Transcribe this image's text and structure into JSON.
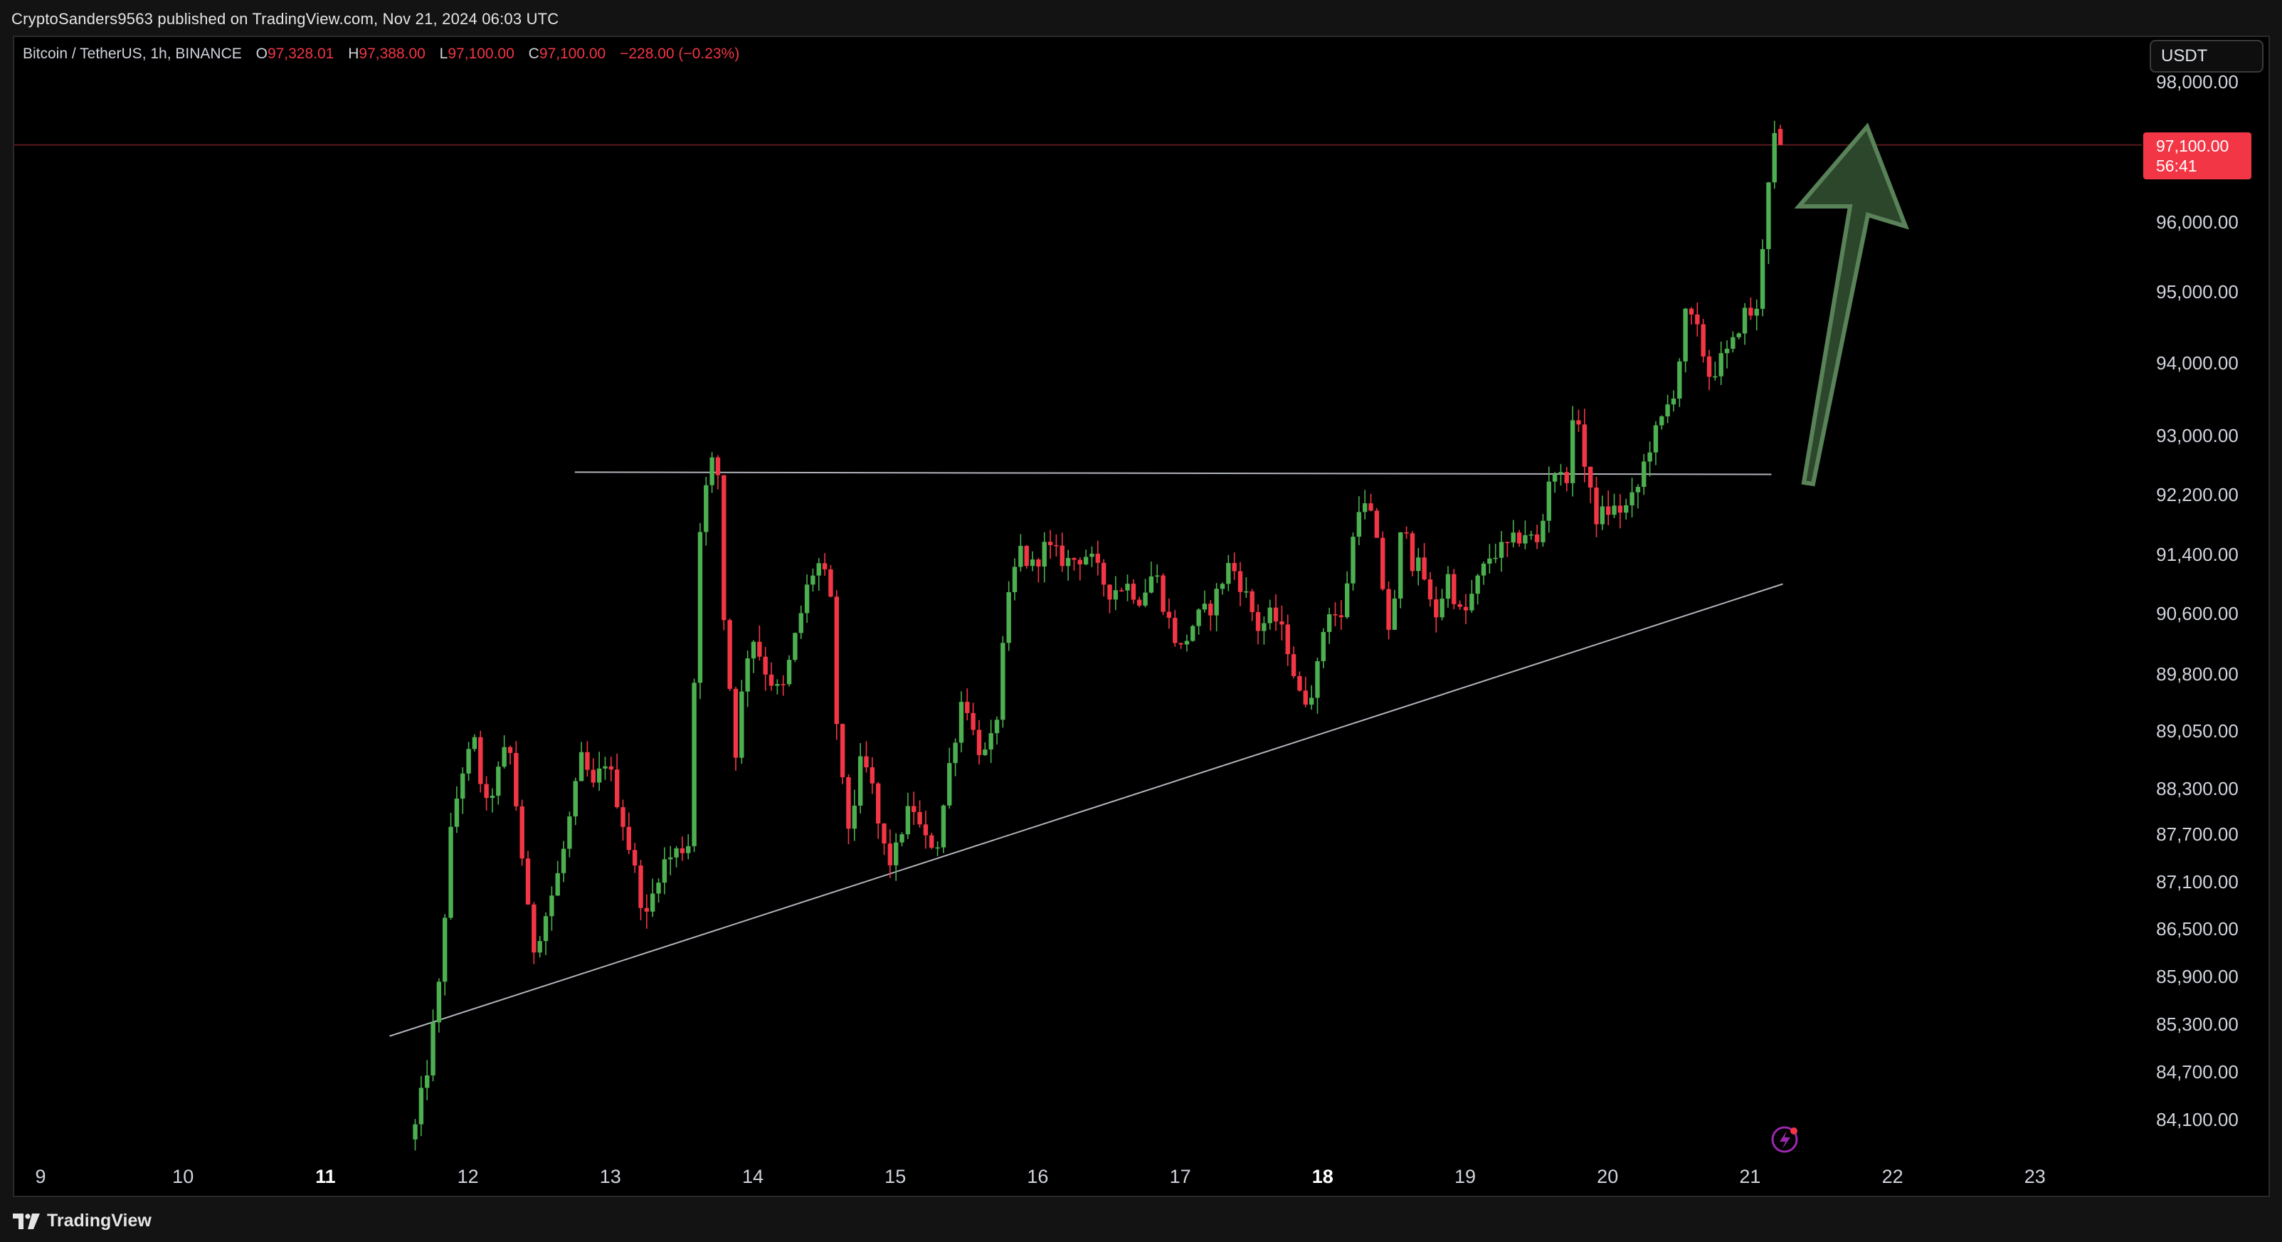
{
  "header": {
    "publish_line": "CryptoSanders9563 published on TradingView.com, Nov 21, 2024 06:03 UTC"
  },
  "legend": {
    "symbol": "Bitcoin / TetherUS, 1h, BINANCE",
    "o_label": "O",
    "o_value": "97,328.01",
    "h_label": "H",
    "h_value": "97,388.00",
    "l_label": "L",
    "l_value": "97,100.00",
    "c_label": "C",
    "c_value": "97,100.00",
    "change": "−228.00 (−0.23%)"
  },
  "currency_button": "USDT",
  "price_tag": {
    "price": "97,100.00",
    "countdown": "56:41"
  },
  "footer": {
    "brand": "TradingView"
  },
  "colors": {
    "up": "#4caf50",
    "down": "#f23645",
    "background": "#000000",
    "trendline": "#d1d4dc",
    "arrow_fill": "#2f4a2f",
    "arrow_stroke": "#5e8a5e"
  },
  "chart_data": {
    "type": "candlestick",
    "symbol": "Bitcoin / TetherUS",
    "interval": "1h",
    "exchange": "BINANCE",
    "y_axis": {
      "ticks": [
        98000,
        96000,
        95000,
        94000,
        93000,
        92200,
        91400,
        90600,
        89800,
        89050,
        88300,
        87700,
        87100,
        86500,
        85900,
        85300,
        84700,
        84100
      ],
      "tick_labels": [
        "98,000.00",
        "96,000.00",
        "95,000.00",
        "94,000.00",
        "93,000.00",
        "92,200.00",
        "91,400.00",
        "90,600.00",
        "89,800.00",
        "89,050.00",
        "88,300.00",
        "87,700.00",
        "87,100.00",
        "86,500.00",
        "85,900.00",
        "85,300.00",
        "84,700.00",
        "84,100.00"
      ]
    },
    "x_axis": {
      "labels": [
        "9",
        "10",
        "11",
        "12",
        "13",
        "14",
        "15",
        "16",
        "17",
        "18",
        "19",
        "20",
        "21",
        "22",
        "23"
      ],
      "bold": [
        "11",
        "18"
      ]
    },
    "last_price": 97100,
    "path": [
      [
        11.63,
        84000
      ],
      [
        11.72,
        84800
      ],
      [
        11.8,
        85800
      ],
      [
        11.88,
        87700
      ],
      [
        11.95,
        88500
      ],
      [
        12.05,
        88900
      ],
      [
        12.12,
        88000
      ],
      [
        12.25,
        88700
      ],
      [
        12.28,
        89000
      ],
      [
        12.37,
        87600
      ],
      [
        12.45,
        86200
      ],
      [
        12.55,
        86700
      ],
      [
        12.65,
        87300
      ],
      [
        12.8,
        88700
      ],
      [
        12.88,
        88300
      ],
      [
        12.97,
        88700
      ],
      [
        13.07,
        88000
      ],
      [
        13.15,
        87400
      ],
      [
        13.25,
        86600
      ],
      [
        13.35,
        87300
      ],
      [
        13.48,
        87500
      ],
      [
        13.55,
        87600
      ],
      [
        13.58,
        89300
      ],
      [
        13.63,
        91800
      ],
      [
        13.7,
        92600
      ],
      [
        13.75,
        92700
      ],
      [
        13.8,
        90400
      ],
      [
        13.88,
        88800
      ],
      [
        13.95,
        90000
      ],
      [
        14.0,
        90300
      ],
      [
        14.1,
        89800
      ],
      [
        14.2,
        89500
      ],
      [
        14.3,
        90300
      ],
      [
        14.4,
        91100
      ],
      [
        14.48,
        91300
      ],
      [
        14.55,
        90700
      ],
      [
        14.6,
        88700
      ],
      [
        14.68,
        87700
      ],
      [
        14.75,
        88600
      ],
      [
        14.82,
        88500
      ],
      [
        14.9,
        87600
      ],
      [
        14.98,
        87300
      ],
      [
        15.05,
        87800
      ],
      [
        15.12,
        88100
      ],
      [
        15.2,
        87600
      ],
      [
        15.3,
        87600
      ],
      [
        15.38,
        88600
      ],
      [
        15.48,
        89600
      ],
      [
        15.55,
        89000
      ],
      [
        15.62,
        88700
      ],
      [
        15.7,
        89000
      ],
      [
        15.78,
        90600
      ],
      [
        15.87,
        91500
      ],
      [
        15.95,
        91200
      ],
      [
        16.05,
        91500
      ],
      [
        16.2,
        91300
      ],
      [
        16.35,
        91400
      ],
      [
        16.5,
        90900
      ],
      [
        16.62,
        91000
      ],
      [
        16.72,
        90800
      ],
      [
        16.82,
        91200
      ],
      [
        16.9,
        90600
      ],
      [
        17.0,
        90100
      ],
      [
        17.1,
        90500
      ],
      [
        17.22,
        90700
      ],
      [
        17.35,
        91300
      ],
      [
        17.45,
        90900
      ],
      [
        17.55,
        90400
      ],
      [
        17.65,
        90600
      ],
      [
        17.75,
        90200
      ],
      [
        17.85,
        89400
      ],
      [
        17.95,
        89700
      ],
      [
        18.03,
        90700
      ],
      [
        18.13,
        90500
      ],
      [
        18.25,
        92100
      ],
      [
        18.35,
        91900
      ],
      [
        18.48,
        90200
      ],
      [
        18.57,
        92100
      ],
      [
        18.62,
        91300
      ],
      [
        18.7,
        91200
      ],
      [
        18.78,
        90500
      ],
      [
        18.88,
        91100
      ],
      [
        18.98,
        90500
      ],
      [
        19.08,
        91000
      ],
      [
        19.18,
        91400
      ],
      [
        19.3,
        91500
      ],
      [
        19.42,
        91700
      ],
      [
        19.52,
        91500
      ],
      [
        19.6,
        92600
      ],
      [
        19.68,
        92400
      ],
      [
        19.72,
        92500
      ],
      [
        19.78,
        93500
      ],
      [
        19.85,
        92400
      ],
      [
        19.92,
        91900
      ],
      [
        20.02,
        92000
      ],
      [
        20.12,
        92000
      ],
      [
        20.2,
        92200
      ],
      [
        20.28,
        92800
      ],
      [
        20.38,
        93200
      ],
      [
        20.48,
        93700
      ],
      [
        20.55,
        94700
      ],
      [
        20.62,
        94500
      ],
      [
        20.72,
        93800
      ],
      [
        20.78,
        94000
      ],
      [
        20.87,
        94200
      ],
      [
        20.95,
        94700
      ],
      [
        21.05,
        94700
      ],
      [
        21.12,
        96500
      ],
      [
        21.18,
        97328
      ],
      [
        21.23,
        97100
      ]
    ],
    "trendlines": [
      {
        "from": [
          12.75,
          92505
        ],
        "to": [
          21.15,
          92475
        ],
        "label": ""
      },
      {
        "from": [
          11.45,
          85150
        ],
        "to": [
          21.23,
          91000
        ],
        "label": ""
      }
    ],
    "annotation": {
      "type": "arrow",
      "direction": "up",
      "color": "green"
    }
  }
}
